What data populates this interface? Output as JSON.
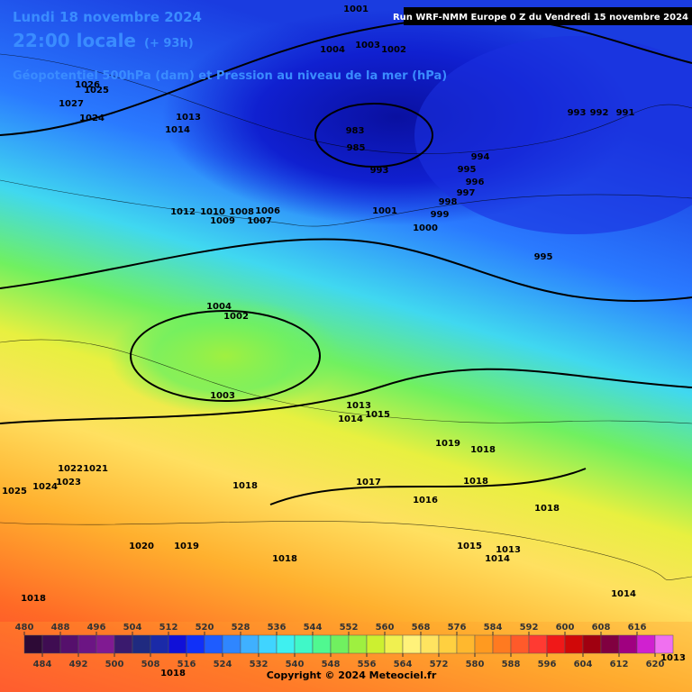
{
  "header": {
    "date": "Lundi 18 novembre 2024",
    "time": "22:00 locale",
    "lead": "(+ 93h)",
    "subtitle": "Géopotentiel 500hPa (dam) et Pression au niveau de la mer (hPa)",
    "run": "Run WRF-NMM Europe 0 Z du Vendredi 15 novembre 2024"
  },
  "pressure_labels": [
    "1001",
    "1004",
    "1003",
    "1002",
    "993",
    "992",
    "991",
    "994",
    "995",
    "996",
    "997",
    "998",
    "999",
    "1000",
    "1001",
    "995",
    "1012",
    "1010",
    "1008",
    "1006",
    "1009",
    "1007",
    "1004",
    "1002",
    "1003",
    "1013",
    "1014",
    "1015",
    "1019",
    "1018",
    "1017",
    "1018",
    "1016",
    "1018",
    "1015",
    "1013",
    "1014",
    "1022",
    "1021",
    "1023",
    "1024",
    "1025",
    "1018",
    "1020",
    "1019",
    "1018",
    "1014",
    "1018",
    "1027",
    "1024",
    "1026",
    "1025",
    "1014",
    "1013",
    "983",
    "985",
    "993",
    "1018",
    "1013"
  ],
  "legend": {
    "ticks": [
      480,
      484,
      488,
      492,
      496,
      500,
      504,
      508,
      512,
      516,
      520,
      524,
      528,
      532,
      536,
      540,
      544,
      548,
      552,
      556,
      560,
      564,
      568,
      572,
      576,
      580,
      584,
      588,
      592,
      596,
      600,
      604,
      608,
      612,
      616,
      620
    ],
    "colors": [
      "#2d0a36",
      "#3f0d52",
      "#55106c",
      "#6c1584",
      "#801a92",
      "#3a1a6e",
      "#1f2a80",
      "#1a2aa8",
      "#1010d8",
      "#1030f8",
      "#1e5cff",
      "#2f86ff",
      "#3fb0ff",
      "#40d4ff",
      "#3ff0f0",
      "#40f8c8",
      "#50f890",
      "#70f060",
      "#9ef040",
      "#ccf030",
      "#f0f050",
      "#fff27a",
      "#ffe460",
      "#ffd040",
      "#ffb82e",
      "#ff9a20",
      "#ff7a20",
      "#ff5a2a",
      "#ff3a32",
      "#f01818",
      "#d00808",
      "#a00010",
      "#800040",
      "#a00080",
      "#d020d0",
      "#f070f0"
    ]
  },
  "copyright": "Copyright © 2024 Meteociel.fr"
}
